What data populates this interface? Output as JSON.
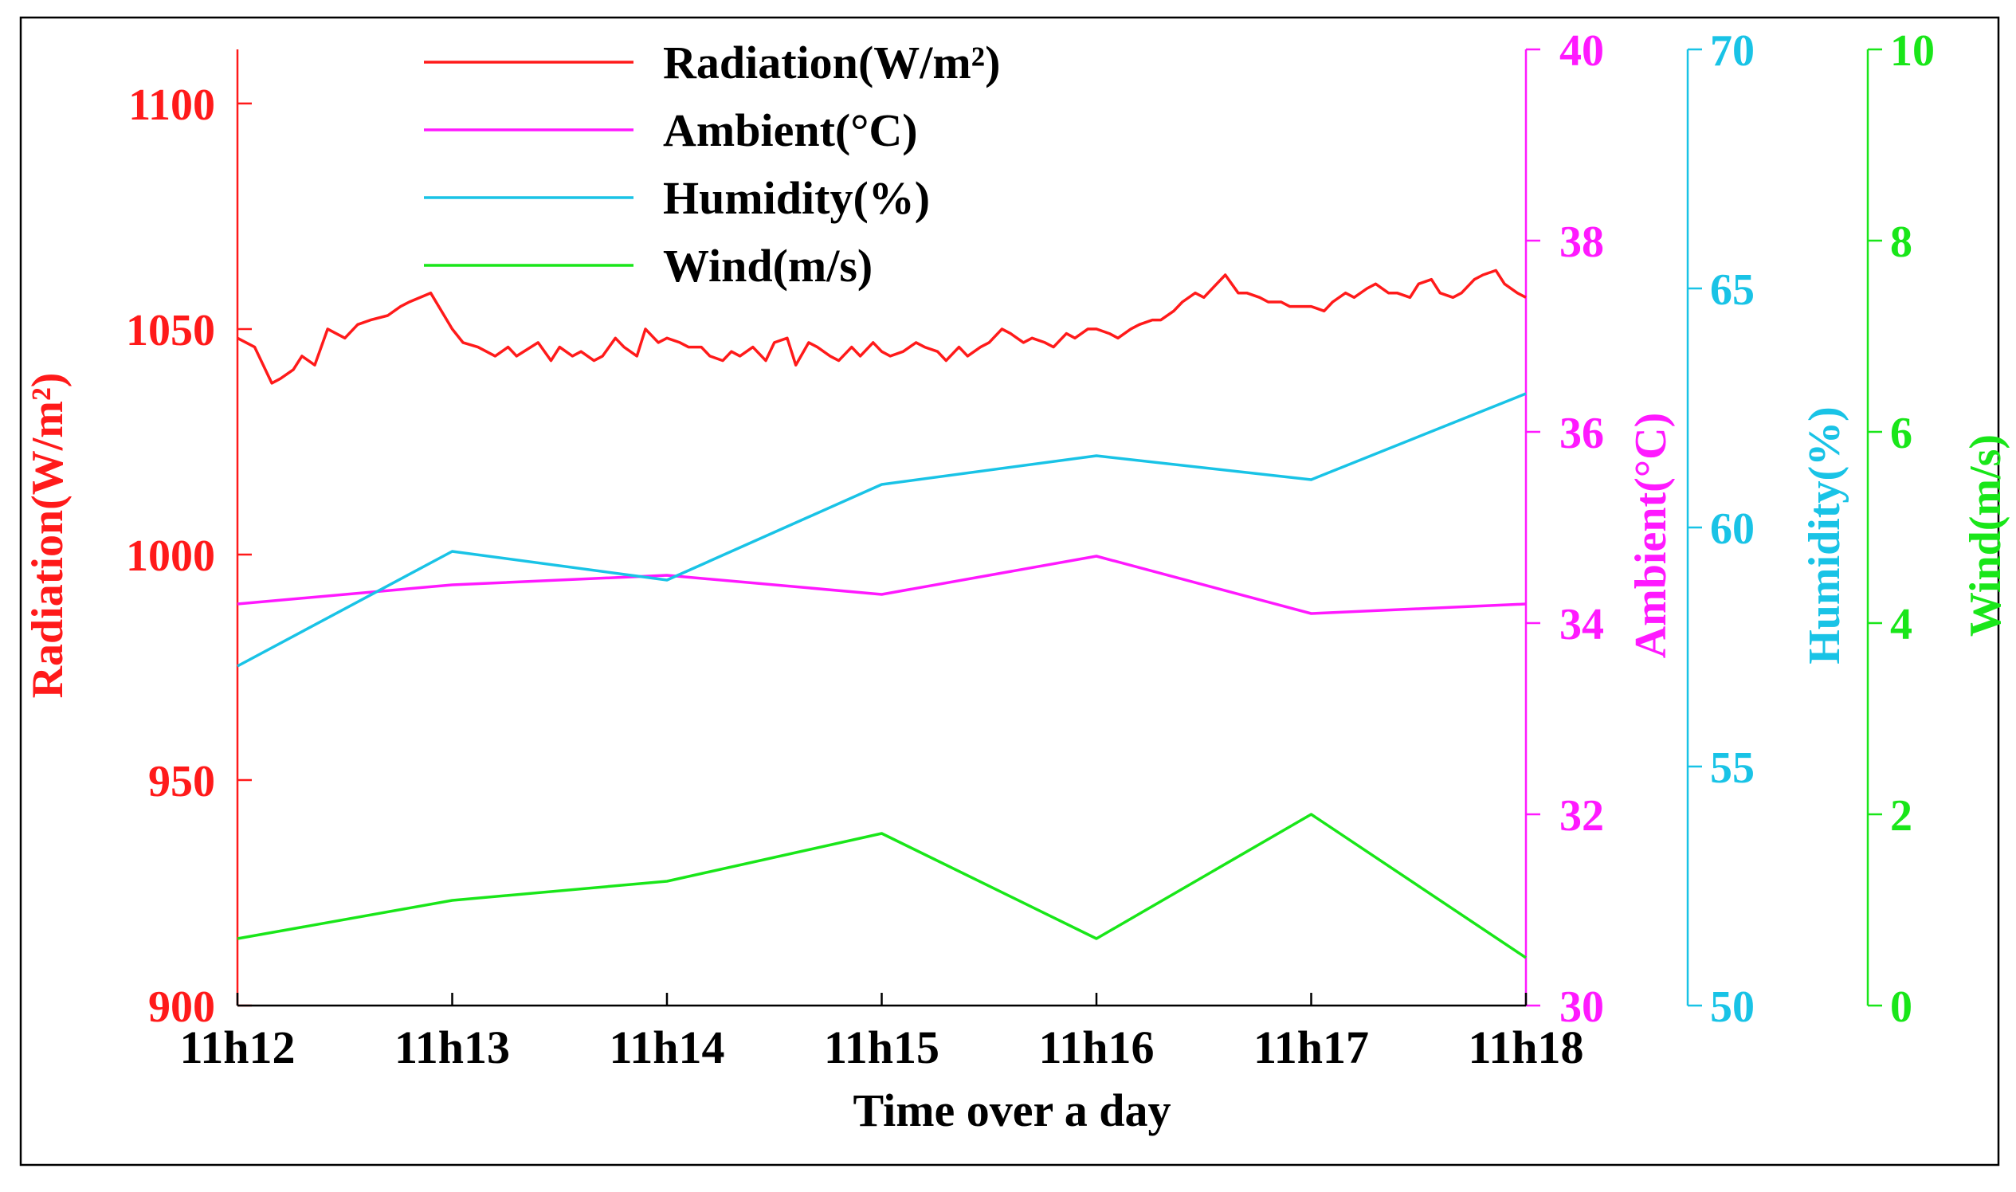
{
  "chart_data": {
    "type": "line",
    "xlabel": "Time over a day",
    "categories": [
      "11h12",
      "11h13",
      "11h14",
      "11h15",
      "11h16",
      "11h17",
      "11h18"
    ],
    "axes": [
      {
        "id": "radiation",
        "label": "Radiation(W/m²)",
        "color": "#ff1a1a",
        "side": "left",
        "min": 900,
        "max": 1112,
        "ticks": [
          "900",
          "950",
          "1000",
          "1050",
          "1100"
        ]
      },
      {
        "id": "ambient",
        "label": "Ambient(°C)",
        "color": "#ff19ff",
        "side": "right",
        "min": 30,
        "max": 40,
        "ticks": [
          "30",
          "32",
          "34",
          "36",
          "38",
          "40"
        ]
      },
      {
        "id": "humidity",
        "label": "Humidity(%)",
        "color": "#19c3e6",
        "side": "right",
        "min": 50,
        "max": 70,
        "ticks": [
          "50",
          "55",
          "60",
          "65",
          "70"
        ]
      },
      {
        "id": "wind",
        "label": "Wind(m/s)",
        "color": "#19e619",
        "side": "right",
        "min": 0,
        "max": 10,
        "ticks": [
          "0",
          "2",
          "4",
          "6",
          "8",
          "10"
        ]
      }
    ],
    "series": [
      {
        "name": "Radiation(W/m²)",
        "axis": "radiation",
        "color": "#ff1a1a",
        "x": [
          0,
          0.08,
          0.16,
          0.2,
          0.26,
          0.3,
          0.36,
          0.42,
          0.5,
          0.56,
          0.62,
          0.7,
          0.76,
          0.8,
          0.9,
          1.0,
          1.05,
          1.12,
          1.2,
          1.26,
          1.3,
          1.4,
          1.46,
          1.5,
          1.56,
          1.6,
          1.66,
          1.7,
          1.76,
          1.8,
          1.86,
          1.9,
          1.96,
          2.0,
          2.06,
          2.1,
          2.16,
          2.2,
          2.26,
          2.3,
          2.34,
          2.4,
          2.46,
          2.5,
          2.56,
          2.6,
          2.66,
          2.7,
          2.76,
          2.8,
          2.86,
          2.9,
          2.96,
          3.0,
          3.04,
          3.1,
          3.16,
          3.2,
          3.26,
          3.3,
          3.36,
          3.4,
          3.46,
          3.5,
          3.56,
          3.6,
          3.66,
          3.7,
          3.76,
          3.8,
          3.86,
          3.9,
          3.96,
          4.0,
          4.06,
          4.1,
          4.16,
          4.2,
          4.26,
          4.3,
          4.36,
          4.4,
          4.46,
          4.5,
          4.56,
          4.6,
          4.66,
          4.7,
          4.76,
          4.8,
          4.86,
          4.9,
          4.96,
          5.0,
          5.06,
          5.1,
          5.16,
          5.2,
          5.26,
          5.3,
          5.36,
          5.4,
          5.46,
          5.5,
          5.56,
          5.6,
          5.66,
          5.7,
          5.76,
          5.8,
          5.86,
          5.9,
          5.96,
          6.0
        ],
        "values": [
          1048,
          1046,
          1038,
          1039,
          1041,
          1044,
          1042,
          1050,
          1048,
          1051,
          1052,
          1053,
          1055,
          1056,
          1058,
          1050,
          1047,
          1046,
          1044,
          1046,
          1044,
          1047,
          1043,
          1046,
          1044,
          1045,
          1043,
          1044,
          1048,
          1046,
          1044,
          1050,
          1047,
          1048,
          1047,
          1046,
          1046,
          1044,
          1043,
          1045,
          1044,
          1046,
          1043,
          1047,
          1048,
          1042,
          1047,
          1046,
          1044,
          1043,
          1046,
          1044,
          1047,
          1045,
          1044,
          1045,
          1047,
          1046,
          1045,
          1043,
          1046,
          1044,
          1046,
          1047,
          1050,
          1049,
          1047,
          1048,
          1047,
          1046,
          1049,
          1048,
          1050,
          1050,
          1049,
          1048,
          1050,
          1051,
          1052,
          1052,
          1054,
          1056,
          1058,
          1057,
          1060,
          1062,
          1058,
          1058,
          1057,
          1056,
          1056,
          1055,
          1055,
          1055,
          1054,
          1056,
          1058,
          1057,
          1059,
          1060,
          1058,
          1058,
          1057,
          1060,
          1061,
          1058,
          1057,
          1058,
          1061,
          1062,
          1063,
          1060,
          1058,
          1057
        ]
      },
      {
        "name": "Ambient(°C)",
        "axis": "ambient",
        "color": "#ff19ff",
        "x": [
          0,
          1,
          2,
          3,
          4,
          5,
          6
        ],
        "values": [
          34.2,
          34.4,
          34.5,
          34.3,
          34.7,
          34.1,
          34.2
        ]
      },
      {
        "name": "Humidity(%)",
        "axis": "humidity",
        "color": "#19c3e6",
        "x": [
          0,
          1,
          2,
          3,
          4,
          5,
          6
        ],
        "values": [
          57.1,
          59.5,
          58.9,
          60.9,
          61.5,
          61.0,
          62.8
        ]
      },
      {
        "name": "Wind(m/s)",
        "axis": "wind",
        "color": "#19e619",
        "x": [
          0,
          1,
          2,
          3,
          4,
          5,
          6
        ],
        "values": [
          0.7,
          1.1,
          1.3,
          1.8,
          0.7,
          2.0,
          0.5
        ]
      }
    ],
    "legend": {
      "placement": "top-left",
      "entries": [
        "Radiation(W/m²)",
        "Ambient(°C)",
        "Humidity(%)",
        "Wind(m/s)"
      ]
    },
    "grid": false
  }
}
